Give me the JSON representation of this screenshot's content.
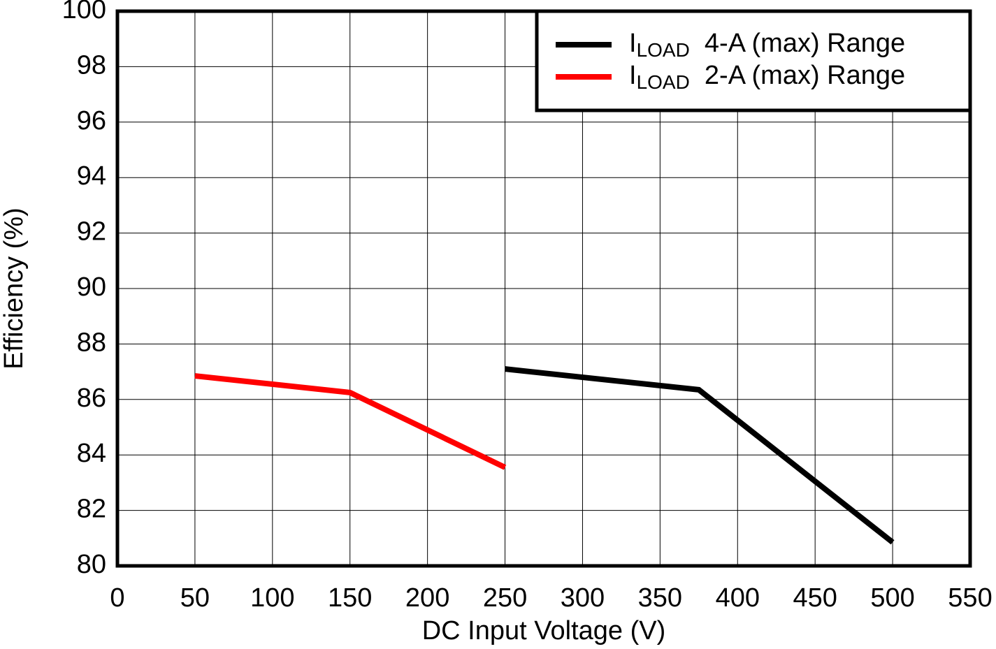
{
  "chart_data": {
    "type": "line",
    "xlabel": "DC Input Voltage (V)",
    "ylabel": "Efficiency (%)",
    "series": [
      {
        "name": "ILOAD 4-A (max) Range",
        "color": "#000000",
        "x": [
          250,
          375,
          500
        ],
        "values": [
          87.1,
          86.35,
          80.85
        ]
      },
      {
        "name": "ILOAD 2-A (max) Range",
        "color": "#ff0000",
        "x": [
          50,
          150,
          250
        ],
        "values": [
          86.85,
          86.25,
          83.55
        ]
      }
    ],
    "xlim": [
      0,
      550
    ],
    "xticks": [
      0,
      50,
      100,
      150,
      200,
      250,
      300,
      350,
      400,
      450,
      500,
      550
    ],
    "ylim": [
      80,
      100
    ],
    "yticks": [
      80,
      82,
      84,
      86,
      88,
      90,
      92,
      94,
      96,
      98,
      100
    ],
    "grid": true,
    "legend": "upper right"
  }
}
